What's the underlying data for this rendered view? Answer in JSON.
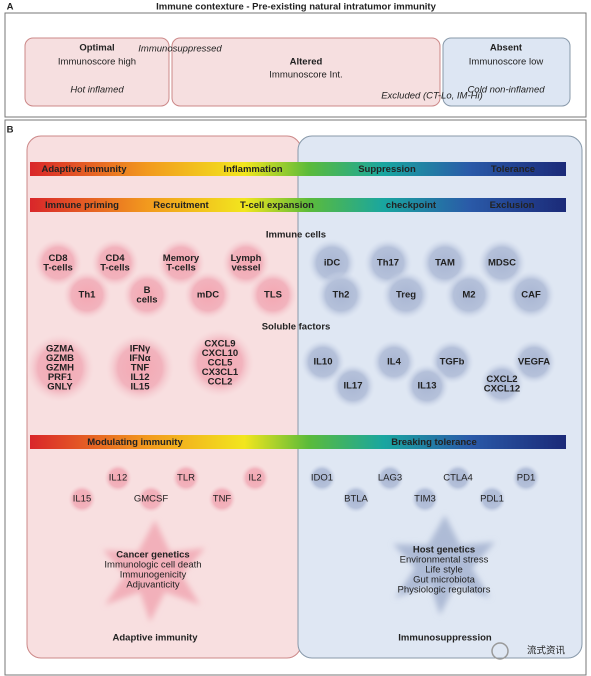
{
  "panel_a": {
    "label": "A",
    "title": "Immune contexture - Pre-existing natural intratumor immunity",
    "optimal": {
      "title": "Optimal",
      "score": "Immunoscore high",
      "type": "Hot inflamed"
    },
    "altered": {
      "note": "Immunosuppressed",
      "title": "Altered",
      "score": "Immunoscore Int.",
      "type": "Excluded (CT-Lo, IM-Hi)"
    },
    "absent": {
      "title": "Absent",
      "score": "Immunoscore low",
      "type": "Cold non-inflamed"
    }
  },
  "panel_b": {
    "label": "B",
    "bar1": [
      "Adaptive immunity",
      "Inflammation",
      "Suppression",
      "Tolerance"
    ],
    "bar2": [
      "Immune priming",
      "Recruitment",
      "T-cell expansion",
      "checkpoint",
      "Exclusion"
    ],
    "immune_cells_heading": "Immune cells",
    "immune_cells_left": [
      [
        "CD8",
        "T-cells"
      ],
      [
        "CD4",
        "T-cells"
      ],
      [
        "Memory",
        "T-cells"
      ],
      [
        "Lymph",
        "vessel"
      ],
      [
        "Th1"
      ],
      [
        "B",
        "cells"
      ],
      [
        "mDC"
      ],
      [
        "TLS"
      ]
    ],
    "immune_cells_right": [
      [
        "iDC"
      ],
      [
        "Th17"
      ],
      [
        "TAM"
      ],
      [
        "MDSC"
      ],
      [
        "Th2"
      ],
      [
        "Treg"
      ],
      [
        "M2"
      ],
      [
        "CAF"
      ]
    ],
    "soluble_factors_heading": "Soluble factors",
    "factors_left": [
      [
        "GZMA",
        "GZMB",
        "GZMH",
        "PRF1",
        "GNLY"
      ],
      [
        "IFNγ",
        "IFNα",
        "TNF",
        "IL12",
        "IL15"
      ],
      [
        "CXCL9",
        "CXCL10",
        "CCL5",
        "CX3CL1",
        "CCL2"
      ]
    ],
    "factors_right": [
      [
        "IL10"
      ],
      [
        "IL4"
      ],
      [
        "TGFb"
      ],
      [
        "VEGFA"
      ],
      [
        "IL17"
      ],
      [
        "IL13"
      ],
      [
        "CXCL2",
        "CXCL12"
      ]
    ],
    "bar3": [
      "Modulating immunity",
      "Breaking tolerance"
    ],
    "modulators_left": [
      "IL12",
      "TLR",
      "IL2",
      "IL15",
      "GMCSF",
      "TNF"
    ],
    "modulators_right": [
      "IDO1",
      "LAG3",
      "CTLA4",
      "PD1",
      "BTLA",
      "TIM3",
      "PDL1"
    ],
    "cancer_factors": [
      "Cancer genetics",
      "Immunologic cell death",
      "Immunogenicity",
      "Adjuvanticity"
    ],
    "host_factors": [
      "Host genetics",
      "Environmental stress",
      "Life style",
      "Gut microbiota",
      "Physiologic regulators"
    ],
    "footer_left": "Adaptive immunity",
    "footer_right": "Immunosuppression"
  },
  "watermark": "流式资讯"
}
